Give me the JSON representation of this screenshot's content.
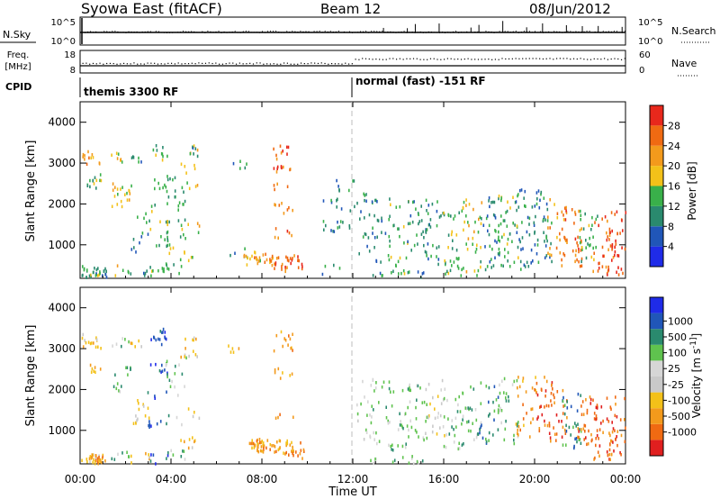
{
  "header": {
    "title_left": "Syowa East (fitACF)",
    "title_center": "Beam 12",
    "title_right": "08/Jun/2012"
  },
  "strip1": {
    "label_left": "N.Sky",
    "left_ticks": [
      "10^5",
      "10^0"
    ],
    "right_ticks": [
      "10^5",
      "10^0"
    ],
    "label_right": "N.Search"
  },
  "strip2": {
    "label_left_1": "Freq.",
    "label_left_2": "[MHz]",
    "left_ticks": [
      "18",
      "8"
    ],
    "right_ticks": [
      "60",
      "0"
    ],
    "label_right": "Nave"
  },
  "cpid": {
    "label": "CPID",
    "segments": [
      {
        "label": "themis 3300 RF",
        "start_hour": 0
      },
      {
        "label": "normal (fast) -151 RF",
        "start_hour": 12
      }
    ]
  },
  "xaxis": {
    "label": "Time UT",
    "ticks": [
      "00:00",
      "04:00",
      "08:00",
      "12:00",
      "16:00",
      "20:00",
      "00:00"
    ]
  },
  "colors": {
    "power": [
      "#1f2be8",
      "#2056b8",
      "#2a8a6e",
      "#39b04a",
      "#f3c119",
      "#f39a1c",
      "#f06a12",
      "#e8281c"
    ],
    "velocity": [
      "#e01f1f",
      "#f06a12",
      "#f39a1c",
      "#f3c119",
      "#c9c9c9",
      "#d6d6d6",
      "#5fc34e",
      "#2a8a6e",
      "#2056b8",
      "#1f2be8"
    ],
    "cpid_marker": "#b0b0b0"
  },
  "chart_data": [
    {
      "type": "heatmap",
      "title": "",
      "xlabel": "Time UT",
      "ylabel": "Slant Range [km]",
      "xlim": [
        0,
        24
      ],
      "ylim": [
        180,
        4500
      ],
      "yticks": [
        1000,
        2000,
        3000,
        4000
      ],
      "colorbar": {
        "label": "Power [dB]",
        "range": [
          0,
          32
        ],
        "ticks": [
          4,
          8,
          12,
          16,
          20,
          24,
          28
        ]
      },
      "clusters": [
        {
          "hour": 0.45,
          "ranges": [
            3100,
            3250
          ],
          "level": 5
        },
        {
          "hour": 0.5,
          "ranges": [
            2500,
            2600,
            350,
            300,
            260
          ],
          "level": 3
        },
        {
          "hour": 0.7,
          "ranges": [
            330,
            280,
            250
          ],
          "level": 2
        },
        {
          "hour": 1.8,
          "ranges": [
            3150,
            2450,
            2300,
            2050,
            380
          ],
          "level": 4
        },
        {
          "hour": 2.6,
          "ranges": [
            3150,
            1650,
            1250,
            950,
            330
          ],
          "level": 2
        },
        {
          "hour": 3.4,
          "ranges": [
            3350,
            3200,
            2500,
            1900,
            1450,
            1100,
            420,
            300
          ],
          "level": 3
        },
        {
          "hour": 4.2,
          "ranges": [
            2700,
            2300,
            1950,
            1500,
            1250,
            900,
            420
          ],
          "level": 3
        },
        {
          "hour": 4.8,
          "ranges": [
            3300,
            2900,
            2500,
            1400,
            700
          ],
          "level": 4
        },
        {
          "hour": 5.3,
          "ranges": [
            3250
          ],
          "level": 2
        },
        {
          "hour": 6.9,
          "ranges": [
            3000,
            800
          ],
          "level": 2
        },
        {
          "hour": 7.6,
          "ranges": [
            700,
            650,
            600
          ],
          "level": 4
        },
        {
          "hour": 8.0,
          "ranges": [
            700,
            650,
            600
          ],
          "level": 5
        },
        {
          "hour": 8.9,
          "ranges": [
            3300,
            3000,
            2800,
            2400,
            1900,
            1300,
            650,
            520
          ],
          "level": 6
        },
        {
          "hour": 9.4,
          "ranges": [
            650,
            500,
            420
          ],
          "level": 6
        },
        {
          "hour": 11.0,
          "ranges": [
            2150,
            1450,
            380
          ],
          "level": 2
        },
        {
          "hour": 11.7,
          "ranges": [
            2450,
            1900,
            1450
          ],
          "level": 2
        },
        {
          "hour": 12.6,
          "ranges": [
            2150,
            1750,
            1300,
            900
          ],
          "level": 2
        },
        {
          "hour": 13.2,
          "ranges": [
            2100,
            1600,
            1200,
            700,
            240
          ],
          "level": 2
        },
        {
          "hour": 14.0,
          "ranges": [
            1950,
            1500,
            1100,
            600,
            240
          ],
          "level": 3
        },
        {
          "hour": 14.8,
          "ranges": [
            2000,
            1650,
            1200,
            900,
            240
          ],
          "level": 2
        },
        {
          "hour": 15.6,
          "ranges": [
            2100,
            1750,
            1400,
            1000,
            620
          ],
          "level": 2
        },
        {
          "hour": 16.4,
          "ranges": [
            1750,
            1350,
            1000,
            600,
            380
          ],
          "level": 3
        },
        {
          "hour": 17.2,
          "ranges": [
            2000,
            1600,
            1250,
            900,
            380
          ],
          "level": 4
        },
        {
          "hour": 18.0,
          "ranges": [
            2050,
            1700,
            1350,
            1000,
            700,
            450
          ],
          "level": 2
        },
        {
          "hour": 18.8,
          "ranges": [
            2150,
            1800,
            1500,
            1150,
            800,
            500
          ],
          "level": 3
        },
        {
          "hour": 19.6,
          "ranges": [
            2250,
            1950,
            1550,
            1200,
            900,
            500
          ],
          "level": 2
        },
        {
          "hour": 20.4,
          "ranges": [
            2200,
            1900,
            1600,
            1300,
            1000,
            700
          ],
          "level": 2
        },
        {
          "hour": 21.0,
          "ranges": [
            2000,
            1700,
            1300,
            1000,
            800
          ],
          "level": 5
        },
        {
          "hour": 21.6,
          "ranges": [
            1800,
            1500,
            1100,
            900,
            700,
            600
          ],
          "level": 6
        },
        {
          "hour": 22.3,
          "ranges": [
            1700,
            1400,
            1100,
            900,
            700
          ],
          "level": 3
        },
        {
          "hour": 23.0,
          "ranges": [
            1600,
            1200,
            900,
            650,
            420
          ],
          "level": 6
        },
        {
          "hour": 23.6,
          "ranges": [
            1700,
            1300,
            1000,
            750,
            400
          ],
          "level": 7
        }
      ]
    },
    {
      "type": "heatmap",
      "title": "",
      "xlabel": "Time UT",
      "ylabel": "Slant Range [km]",
      "xlim": [
        0,
        24
      ],
      "ylim": [
        180,
        4500
      ],
      "yticks": [
        1000,
        2000,
        3000,
        4000
      ],
      "colorbar": {
        "label": "Velocity [m s^-1]",
        "ticks": [
          "1000",
          "500",
          "100",
          "25",
          "-25",
          "-100",
          "-500",
          "-1000"
        ]
      },
      "clusters": [
        {
          "hour": 0.45,
          "ranges": [
            3100,
            3250
          ],
          "level": 3
        },
        {
          "hour": 0.5,
          "ranges": [
            2500,
            350,
            300,
            260
          ],
          "level": 3
        },
        {
          "hour": 0.7,
          "ranges": [
            330,
            280,
            250
          ],
          "level": 2
        },
        {
          "hour": 1.8,
          "ranges": [
            3150,
            2450,
            2050,
            380
          ],
          "level": 6
        },
        {
          "hour": 2.6,
          "ranges": [
            3150,
            1650,
            1250,
            330
          ],
          "level": 3
        },
        {
          "hour": 3.4,
          "ranges": [
            3350,
            3200,
            2500,
            1900,
            1100,
            300
          ],
          "level": 8
        },
        {
          "hour": 4.2,
          "ranges": [
            2700,
            2300,
            1950,
            1250,
            420
          ],
          "level": 6
        },
        {
          "hour": 4.8,
          "ranges": [
            3300,
            2900,
            1400,
            700
          ],
          "level": 3
        },
        {
          "hour": 6.9,
          "ranges": [
            3000
          ],
          "level": 3
        },
        {
          "hour": 7.6,
          "ranges": [
            700,
            650,
            600
          ],
          "level": 2
        },
        {
          "hour": 8.0,
          "ranges": [
            700,
            650,
            600
          ],
          "level": 2
        },
        {
          "hour": 8.9,
          "ranges": [
            3300,
            3000,
            2400,
            1300,
            650,
            520
          ],
          "level": 2
        },
        {
          "hour": 9.4,
          "ranges": [
            650,
            500,
            420
          ],
          "level": 2
        },
        {
          "hour": 12.6,
          "ranges": [
            2150,
            1750,
            1300,
            900
          ],
          "level": 5
        },
        {
          "hour": 13.2,
          "ranges": [
            2100,
            1600,
            1200,
            700,
            240
          ],
          "level": 6
        },
        {
          "hour": 14.0,
          "ranges": [
            1950,
            1500,
            1100,
            600,
            240
          ],
          "level": 6
        },
        {
          "hour": 14.8,
          "ranges": [
            2000,
            1650,
            1200,
            900,
            240
          ],
          "level": 6
        },
        {
          "hour": 15.6,
          "ranges": [
            2100,
            1750,
            1400,
            1000
          ],
          "level": 4
        },
        {
          "hour": 16.4,
          "ranges": [
            1750,
            1350,
            1000,
            600
          ],
          "level": 6
        },
        {
          "hour": 17.2,
          "ranges": [
            2000,
            1600,
            1250,
            900
          ],
          "level": 6
        },
        {
          "hour": 18.0,
          "ranges": [
            2050,
            1700,
            1350,
            1000,
            700
          ],
          "level": 7
        },
        {
          "hour": 18.8,
          "ranges": [
            2150,
            1800,
            1500,
            1150,
            800
          ],
          "level": 6
        },
        {
          "hour": 19.6,
          "ranges": [
            2250,
            1950,
            1550,
            1200,
            900
          ],
          "level": 2
        },
        {
          "hour": 20.4,
          "ranges": [
            2200,
            1900,
            1600,
            1300,
            1000
          ],
          "level": 1
        },
        {
          "hour": 21.0,
          "ranges": [
            2000,
            1700,
            1300,
            1000,
            800
          ],
          "level": 1
        },
        {
          "hour": 21.6,
          "ranges": [
            1800,
            1500,
            1100,
            900,
            700
          ],
          "level": 7
        },
        {
          "hour": 22.3,
          "ranges": [
            1700,
            1400,
            1100,
            900,
            700
          ],
          "level": 1
        },
        {
          "hour": 23.0,
          "ranges": [
            1600,
            1200,
            900,
            650,
            420
          ],
          "level": 1
        },
        {
          "hour": 23.6,
          "ranges": [
            1700,
            1300,
            1000,
            750,
            400
          ],
          "level": 1
        }
      ]
    }
  ]
}
